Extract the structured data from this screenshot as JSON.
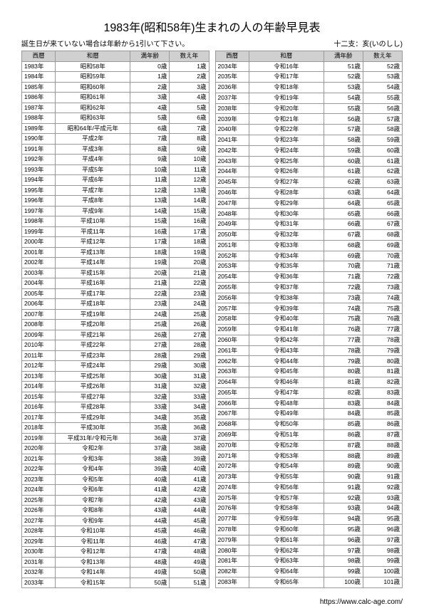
{
  "title": "1983年(昭和58年)生まれの人の年齢早見表",
  "note": "誕生日が来ていない場合は年齢から1引いて下さい。",
  "zodiac": "十二支：亥(いのしし)",
  "footer_url": "https://www.calc-age.com/",
  "headers": {
    "west": "西暦",
    "era": "和暦",
    "full": "満年齢",
    "count": "数え年"
  },
  "colors": {
    "header_bg": "#d0d0d0",
    "border": "#999999",
    "bg": "#ffffff",
    "text": "#000000"
  },
  "font": {
    "title_size": 16,
    "body_size": 9,
    "cell_size": 8.5
  },
  "left": [
    {
      "w": "1983年",
      "e": "昭和58年",
      "f": "0歳",
      "c": "1歳"
    },
    {
      "w": "1984年",
      "e": "昭和59年",
      "f": "1歳",
      "c": "2歳"
    },
    {
      "w": "1985年",
      "e": "昭和60年",
      "f": "2歳",
      "c": "3歳"
    },
    {
      "w": "1986年",
      "e": "昭和61年",
      "f": "3歳",
      "c": "4歳"
    },
    {
      "w": "1987年",
      "e": "昭和62年",
      "f": "4歳",
      "c": "5歳"
    },
    {
      "w": "1988年",
      "e": "昭和63年",
      "f": "5歳",
      "c": "6歳"
    },
    {
      "w": "1989年",
      "e": "昭和64年/平成元年",
      "f": "6歳",
      "c": "7歳"
    },
    {
      "w": "1990年",
      "e": "平成2年",
      "f": "7歳",
      "c": "8歳"
    },
    {
      "w": "1991年",
      "e": "平成3年",
      "f": "8歳",
      "c": "9歳"
    },
    {
      "w": "1992年",
      "e": "平成4年",
      "f": "9歳",
      "c": "10歳"
    },
    {
      "w": "1993年",
      "e": "平成5年",
      "f": "10歳",
      "c": "11歳"
    },
    {
      "w": "1994年",
      "e": "平成6年",
      "f": "11歳",
      "c": "12歳"
    },
    {
      "w": "1995年",
      "e": "平成7年",
      "f": "12歳",
      "c": "13歳"
    },
    {
      "w": "1996年",
      "e": "平成8年",
      "f": "13歳",
      "c": "14歳"
    },
    {
      "w": "1997年",
      "e": "平成9年",
      "f": "14歳",
      "c": "15歳"
    },
    {
      "w": "1998年",
      "e": "平成10年",
      "f": "15歳",
      "c": "16歳"
    },
    {
      "w": "1999年",
      "e": "平成11年",
      "f": "16歳",
      "c": "17歳"
    },
    {
      "w": "2000年",
      "e": "平成12年",
      "f": "17歳",
      "c": "18歳"
    },
    {
      "w": "2001年",
      "e": "平成13年",
      "f": "18歳",
      "c": "19歳"
    },
    {
      "w": "2002年",
      "e": "平成14年",
      "f": "19歳",
      "c": "20歳"
    },
    {
      "w": "2003年",
      "e": "平成15年",
      "f": "20歳",
      "c": "21歳"
    },
    {
      "w": "2004年",
      "e": "平成16年",
      "f": "21歳",
      "c": "22歳"
    },
    {
      "w": "2005年",
      "e": "平成17年",
      "f": "22歳",
      "c": "23歳"
    },
    {
      "w": "2006年",
      "e": "平成18年",
      "f": "23歳",
      "c": "24歳"
    },
    {
      "w": "2007年",
      "e": "平成19年",
      "f": "24歳",
      "c": "25歳"
    },
    {
      "w": "2008年",
      "e": "平成20年",
      "f": "25歳",
      "c": "26歳"
    },
    {
      "w": "2009年",
      "e": "平成21年",
      "f": "26歳",
      "c": "27歳"
    },
    {
      "w": "2010年",
      "e": "平成22年",
      "f": "27歳",
      "c": "28歳"
    },
    {
      "w": "2011年",
      "e": "平成23年",
      "f": "28歳",
      "c": "29歳"
    },
    {
      "w": "2012年",
      "e": "平成24年",
      "f": "29歳",
      "c": "30歳"
    },
    {
      "w": "2013年",
      "e": "平成25年",
      "f": "30歳",
      "c": "31歳"
    },
    {
      "w": "2014年",
      "e": "平成26年",
      "f": "31歳",
      "c": "32歳"
    },
    {
      "w": "2015年",
      "e": "平成27年",
      "f": "32歳",
      "c": "33歳"
    },
    {
      "w": "2016年",
      "e": "平成28年",
      "f": "33歳",
      "c": "34歳"
    },
    {
      "w": "2017年",
      "e": "平成29年",
      "f": "34歳",
      "c": "35歳"
    },
    {
      "w": "2018年",
      "e": "平成30年",
      "f": "35歳",
      "c": "36歳"
    },
    {
      "w": "2019年",
      "e": "平成31年/令和元年",
      "f": "36歳",
      "c": "37歳"
    },
    {
      "w": "2020年",
      "e": "令和2年",
      "f": "37歳",
      "c": "38歳"
    },
    {
      "w": "2021年",
      "e": "令和3年",
      "f": "38歳",
      "c": "39歳"
    },
    {
      "w": "2022年",
      "e": "令和4年",
      "f": "39歳",
      "c": "40歳"
    },
    {
      "w": "2023年",
      "e": "令和5年",
      "f": "40歳",
      "c": "41歳"
    },
    {
      "w": "2024年",
      "e": "令和6年",
      "f": "41歳",
      "c": "42歳"
    },
    {
      "w": "2025年",
      "e": "令和7年",
      "f": "42歳",
      "c": "43歳"
    },
    {
      "w": "2026年",
      "e": "令和8年",
      "f": "43歳",
      "c": "44歳"
    },
    {
      "w": "2027年",
      "e": "令和9年",
      "f": "44歳",
      "c": "45歳"
    },
    {
      "w": "2028年",
      "e": "令和10年",
      "f": "45歳",
      "c": "46歳"
    },
    {
      "w": "2029年",
      "e": "令和11年",
      "f": "46歳",
      "c": "47歳"
    },
    {
      "w": "2030年",
      "e": "令和12年",
      "f": "47歳",
      "c": "48歳"
    },
    {
      "w": "2031年",
      "e": "令和13年",
      "f": "48歳",
      "c": "49歳"
    },
    {
      "w": "2032年",
      "e": "令和14年",
      "f": "49歳",
      "c": "50歳"
    },
    {
      "w": "2033年",
      "e": "令和15年",
      "f": "50歳",
      "c": "51歳"
    }
  ],
  "right": [
    {
      "w": "2034年",
      "e": "令和16年",
      "f": "51歳",
      "c": "52歳"
    },
    {
      "w": "2035年",
      "e": "令和17年",
      "f": "52歳",
      "c": "53歳"
    },
    {
      "w": "2036年",
      "e": "令和18年",
      "f": "53歳",
      "c": "54歳"
    },
    {
      "w": "2037年",
      "e": "令和19年",
      "f": "54歳",
      "c": "55歳"
    },
    {
      "w": "2038年",
      "e": "令和20年",
      "f": "55歳",
      "c": "56歳"
    },
    {
      "w": "2039年",
      "e": "令和21年",
      "f": "56歳",
      "c": "57歳"
    },
    {
      "w": "2040年",
      "e": "令和22年",
      "f": "57歳",
      "c": "58歳"
    },
    {
      "w": "2041年",
      "e": "令和23年",
      "f": "58歳",
      "c": "59歳"
    },
    {
      "w": "2042年",
      "e": "令和24年",
      "f": "59歳",
      "c": "60歳"
    },
    {
      "w": "2043年",
      "e": "令和25年",
      "f": "60歳",
      "c": "61歳"
    },
    {
      "w": "2044年",
      "e": "令和26年",
      "f": "61歳",
      "c": "62歳"
    },
    {
      "w": "2045年",
      "e": "令和27年",
      "f": "62歳",
      "c": "63歳"
    },
    {
      "w": "2046年",
      "e": "令和28年",
      "f": "63歳",
      "c": "64歳"
    },
    {
      "w": "2047年",
      "e": "令和29年",
      "f": "64歳",
      "c": "65歳"
    },
    {
      "w": "2048年",
      "e": "令和30年",
      "f": "65歳",
      "c": "66歳"
    },
    {
      "w": "2049年",
      "e": "令和31年",
      "f": "66歳",
      "c": "67歳"
    },
    {
      "w": "2050年",
      "e": "令和32年",
      "f": "67歳",
      "c": "68歳"
    },
    {
      "w": "2051年",
      "e": "令和33年",
      "f": "68歳",
      "c": "69歳"
    },
    {
      "w": "2052年",
      "e": "令和34年",
      "f": "69歳",
      "c": "70歳"
    },
    {
      "w": "2053年",
      "e": "令和35年",
      "f": "70歳",
      "c": "71歳"
    },
    {
      "w": "2054年",
      "e": "令和36年",
      "f": "71歳",
      "c": "72歳"
    },
    {
      "w": "2055年",
      "e": "令和37年",
      "f": "72歳",
      "c": "73歳"
    },
    {
      "w": "2056年",
      "e": "令和38年",
      "f": "73歳",
      "c": "74歳"
    },
    {
      "w": "2057年",
      "e": "令和39年",
      "f": "74歳",
      "c": "75歳"
    },
    {
      "w": "2058年",
      "e": "令和40年",
      "f": "75歳",
      "c": "76歳"
    },
    {
      "w": "2059年",
      "e": "令和41年",
      "f": "76歳",
      "c": "77歳"
    },
    {
      "w": "2060年",
      "e": "令和42年",
      "f": "77歳",
      "c": "78歳"
    },
    {
      "w": "2061年",
      "e": "令和43年",
      "f": "78歳",
      "c": "79歳"
    },
    {
      "w": "2062年",
      "e": "令和44年",
      "f": "79歳",
      "c": "80歳"
    },
    {
      "w": "2063年",
      "e": "令和45年",
      "f": "80歳",
      "c": "81歳"
    },
    {
      "w": "2064年",
      "e": "令和46年",
      "f": "81歳",
      "c": "82歳"
    },
    {
      "w": "2065年",
      "e": "令和47年",
      "f": "82歳",
      "c": "83歳"
    },
    {
      "w": "2066年",
      "e": "令和48年",
      "f": "83歳",
      "c": "84歳"
    },
    {
      "w": "2067年",
      "e": "令和49年",
      "f": "84歳",
      "c": "85歳"
    },
    {
      "w": "2068年",
      "e": "令和50年",
      "f": "85歳",
      "c": "86歳"
    },
    {
      "w": "2069年",
      "e": "令和51年",
      "f": "86歳",
      "c": "87歳"
    },
    {
      "w": "2070年",
      "e": "令和52年",
      "f": "87歳",
      "c": "88歳"
    },
    {
      "w": "2071年",
      "e": "令和53年",
      "f": "88歳",
      "c": "89歳"
    },
    {
      "w": "2072年",
      "e": "令和54年",
      "f": "89歳",
      "c": "90歳"
    },
    {
      "w": "2073年",
      "e": "令和55年",
      "f": "90歳",
      "c": "91歳"
    },
    {
      "w": "2074年",
      "e": "令和56年",
      "f": "91歳",
      "c": "92歳"
    },
    {
      "w": "2075年",
      "e": "令和57年",
      "f": "92歳",
      "c": "93歳"
    },
    {
      "w": "2076年",
      "e": "令和58年",
      "f": "93歳",
      "c": "94歳"
    },
    {
      "w": "2077年",
      "e": "令和59年",
      "f": "94歳",
      "c": "95歳"
    },
    {
      "w": "2078年",
      "e": "令和60年",
      "f": "95歳",
      "c": "96歳"
    },
    {
      "w": "2079年",
      "e": "令和61年",
      "f": "96歳",
      "c": "97歳"
    },
    {
      "w": "2080年",
      "e": "令和62年",
      "f": "97歳",
      "c": "98歳"
    },
    {
      "w": "2081年",
      "e": "令和63年",
      "f": "98歳",
      "c": "99歳"
    },
    {
      "w": "2082年",
      "e": "令和64年",
      "f": "99歳",
      "c": "100歳"
    },
    {
      "w": "2083年",
      "e": "令和65年",
      "f": "100歳",
      "c": "101歳"
    }
  ]
}
